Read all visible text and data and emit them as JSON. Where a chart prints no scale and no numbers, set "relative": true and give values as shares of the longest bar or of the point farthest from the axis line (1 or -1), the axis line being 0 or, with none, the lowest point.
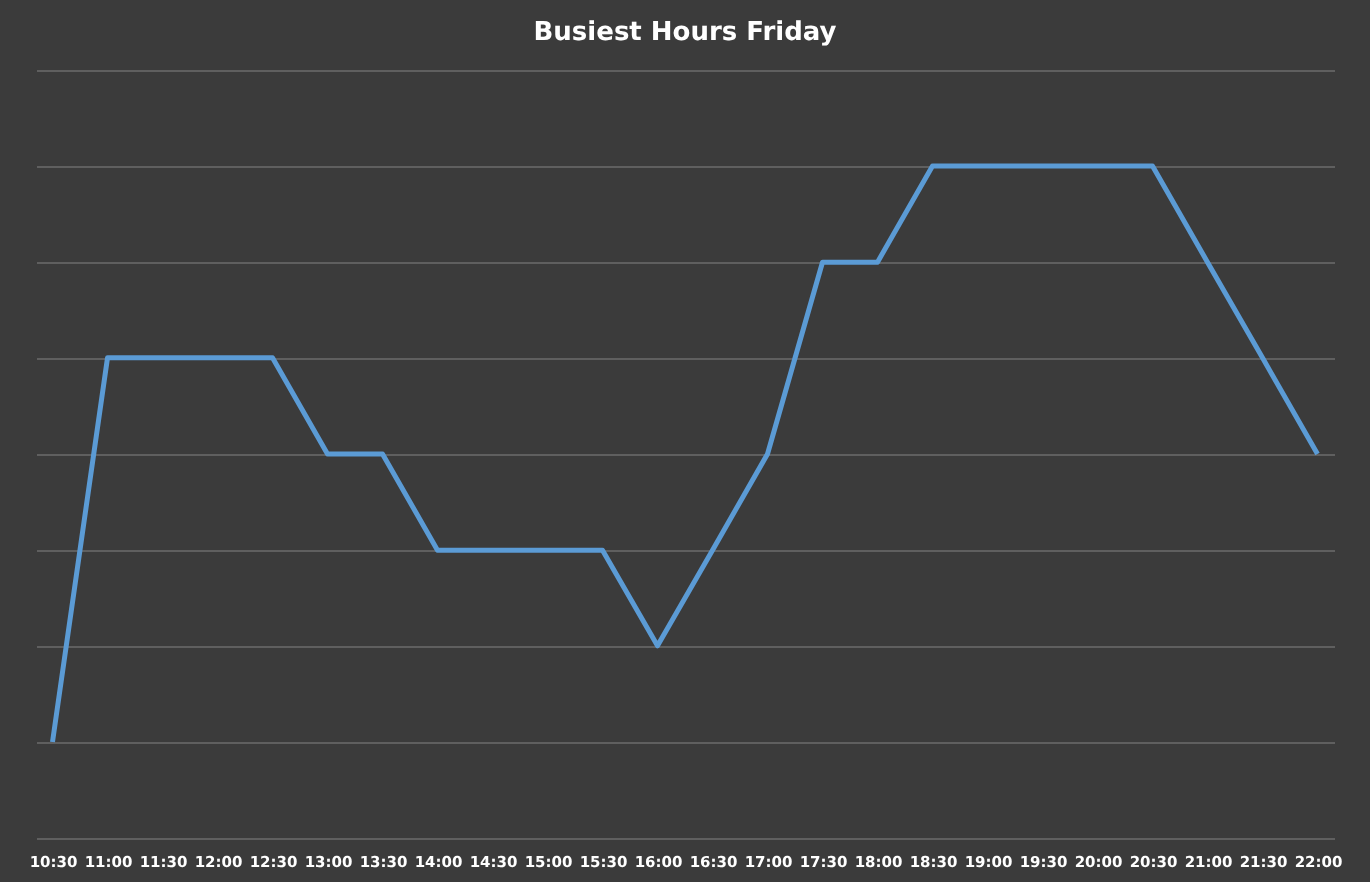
{
  "chart_data": {
    "type": "line",
    "title": "Busiest Hours Friday",
    "relative": true,
    "grid": "y",
    "marker": "none",
    "line_style": "solid",
    "categories": [
      "10:30",
      "11:00",
      "11:30",
      "12:00",
      "12:30",
      "13:00",
      "13:30",
      "14:00",
      "14:30",
      "15:00",
      "15:30",
      "16:00",
      "16:30",
      "17:00",
      "17:30",
      "18:00",
      "18:30",
      "19:00",
      "19:30",
      "20:00",
      "20:30",
      "21:00",
      "21:30",
      "22:00"
    ],
    "series": [
      {
        "color": "#5b9bd5",
        "values": [
          0,
          0.667,
          0.667,
          0.667,
          0.667,
          0.5,
          0.5,
          0.333,
          0.333,
          0.333,
          0.333,
          0.167,
          0.333,
          0.5,
          0.833,
          0.833,
          1,
          1,
          1,
          1,
          1,
          0.833,
          0.667,
          0.5
        ]
      }
    ]
  }
}
